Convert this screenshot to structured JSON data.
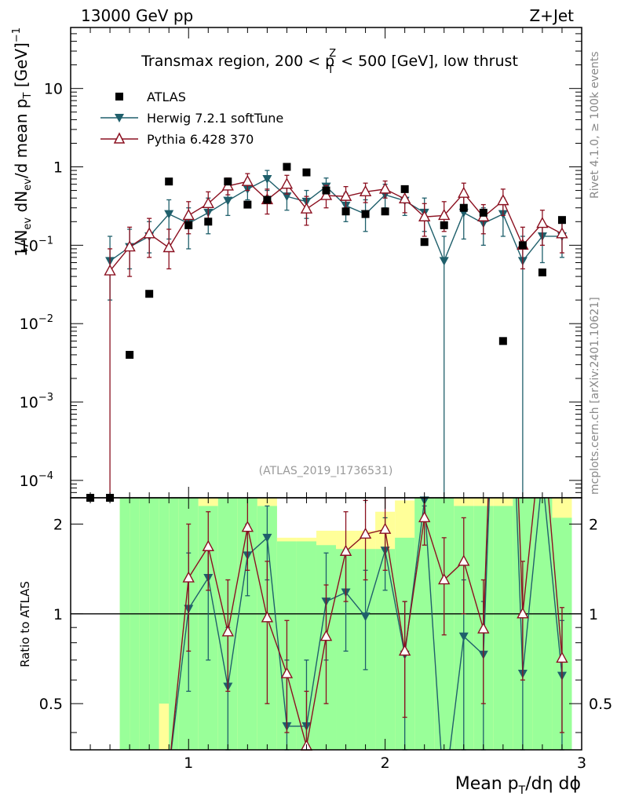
{
  "header": {
    "left_label": "13000 GeV pp",
    "right_label": "Z+Jet",
    "plot_title_main": "Transmax region, 200 < p",
    "plot_title_sup": "Z",
    "plot_title_sub": "T",
    "plot_title_tail": " < 500 [GeV], low thrust",
    "analysis_id": "(ATLAS_2019_I1736531)",
    "side_text_top": "Rivet 4.1.0, ≥ 100k events",
    "side_text_bottom": "mcplots.cern.ch [arXiv:2401.10621]"
  },
  "colors": {
    "atlas": "#000000",
    "herwig": "#1f5f6b",
    "pythia": "#8b1020",
    "band_inner": "#99ff99",
    "band_outer": "#ffff99"
  },
  "chart_data": {
    "type": "scatter",
    "title": "Transmax region, 200 < pT^Z < 500 [GeV], low thrust",
    "xlabel": "Mean pT/dη dϕ",
    "ylabel": "1/Nev dNev/d mean pT [GeV]^-1",
    "ratio_ylabel": "Ratio to ATLAS",
    "xlim": [
      0.4,
      3.0
    ],
    "ylim": [
      6e-05,
      60
    ],
    "ratio_ylim": [
      0.35,
      2.45
    ],
    "yscale": "log",
    "x_ticks": [
      1,
      2,
      3
    ],
    "y_ticks": [
      {
        "value": 10,
        "base": "10",
        "exp": ""
      },
      {
        "value": 1,
        "base": "1",
        "exp": ""
      },
      {
        "value": 0.1,
        "base": "10",
        "exp": "−1"
      },
      {
        "value": 0.01,
        "base": "10",
        "exp": "−2"
      },
      {
        "value": 0.001,
        "base": "10",
        "exp": "−3"
      },
      {
        "value": 0.0001,
        "base": "10",
        "exp": "−4"
      }
    ],
    "ratio_ticks": [
      0.5,
      1,
      2
    ],
    "x_label_parts": {
      "main": "Mean p",
      "sub": "T",
      "tail": "/dη dϕ"
    },
    "y_label_parts": {
      "a": "1/N",
      "a_sub": "ev",
      "b": " dN",
      "b_sub": "ev",
      "c": "/d mean p",
      "c_sub": "T",
      "d": " [GeV]",
      "d_sup": "−1"
    },
    "band_edges": [
      0.65,
      0.7,
      0.75,
      0.8,
      0.85,
      0.9,
      0.95,
      1.05,
      1.15,
      1.25,
      1.35,
      1.45,
      1.55,
      1.65,
      1.75,
      1.85,
      1.95,
      2.05,
      2.15,
      2.25,
      2.35,
      2.45,
      2.55,
      2.65,
      2.75,
      2.85,
      2.95
    ],
    "band_inner_low": [
      0.35,
      0.35,
      0.35,
      0.35,
      0.5,
      0.35,
      0.35,
      0.35,
      0.35,
      0.35,
      0.35,
      0.35,
      0.35,
      0.35,
      0.35,
      0.35,
      0.35,
      0.35,
      0.35,
      0.35,
      0.35,
      0.35,
      0.35,
      0.35,
      0.35,
      0.35
    ],
    "band_inner_high": [
      2.45,
      2.45,
      2.45,
      2.45,
      2.45,
      2.45,
      2.45,
      2.3,
      2.45,
      2.45,
      2.3,
      1.75,
      1.75,
      1.7,
      1.65,
      1.65,
      1.65,
      1.8,
      2.45,
      2.45,
      2.3,
      2.3,
      2.3,
      2.45,
      2.45,
      2.1
    ],
    "band_outer_low": [
      0.35,
      0.35,
      0.35,
      0.35,
      0.35,
      0.35,
      0.35,
      0.35,
      0.35,
      0.35,
      0.35,
      0.35,
      0.35,
      0.35,
      0.35,
      0.35,
      0.35,
      0.35,
      0.35,
      0.35,
      0.35,
      0.35,
      0.35,
      0.35,
      0.35,
      0.35
    ],
    "band_outer_high": [
      2.45,
      2.45,
      2.45,
      2.45,
      2.45,
      2.45,
      2.45,
      2.45,
      2.45,
      2.45,
      2.45,
      1.8,
      1.8,
      1.9,
      1.9,
      1.9,
      2.2,
      2.4,
      2.45,
      2.45,
      2.45,
      2.45,
      2.45,
      2.45,
      2.45,
      2.45
    ],
    "atlas": {
      "name": "ATLAS",
      "x": [
        0.5,
        0.6,
        0.7,
        0.8,
        0.9,
        1.0,
        1.1,
        1.2,
        1.3,
        1.4,
        1.5,
        1.6,
        1.7,
        1.8,
        1.9,
        2.0,
        2.1,
        2.2,
        2.3,
        2.4,
        2.5,
        2.6,
        2.7,
        2.8,
        2.9
      ],
      "y": [
        5e-05,
        5e-05,
        0.004,
        0.024,
        0.65,
        0.18,
        0.2,
        0.65,
        0.33,
        0.38,
        1.0,
        0.85,
        0.5,
        0.27,
        0.25,
        0.27,
        0.52,
        0.11,
        0.18,
        0.3,
        0.26,
        0.006,
        0.1,
        0.045,
        0.21
      ]
    },
    "series": [
      {
        "name": "Herwig 7.2.1 softTune",
        "x": [
          0.6,
          0.7,
          0.8,
          0.9,
          1.0,
          1.1,
          1.2,
          1.3,
          1.4,
          1.5,
          1.6,
          1.7,
          1.8,
          1.9,
          2.0,
          2.1,
          2.2,
          2.3,
          2.4,
          2.5,
          2.6,
          2.7,
          2.8,
          2.9
        ],
        "y": [
          0.063,
          0.095,
          0.13,
          0.25,
          0.19,
          0.26,
          0.37,
          0.52,
          0.7,
          0.42,
          0.36,
          0.56,
          0.32,
          0.25,
          0.44,
          0.37,
          0.26,
          0.063,
          0.26,
          0.19,
          0.25,
          0.063,
          0.13,
          0.13
        ],
        "ylo": [
          0.02,
          0.05,
          0.08,
          0.12,
          0.09,
          0.14,
          0.24,
          0.38,
          0.5,
          0.28,
          0.22,
          0.4,
          0.2,
          0.15,
          0.3,
          0.24,
          0.15,
          5e-05,
          0.12,
          0.1,
          0.13,
          5e-05,
          0.06,
          0.07
        ],
        "yhi": [
          0.13,
          0.16,
          0.2,
          0.38,
          0.3,
          0.4,
          0.55,
          0.7,
          0.9,
          0.6,
          0.5,
          0.72,
          0.46,
          0.38,
          0.6,
          0.52,
          0.4,
          0.13,
          0.42,
          0.3,
          0.4,
          0.13,
          0.2,
          0.2
        ],
        "ratio": [
          -1,
          -1,
          -1,
          0.3,
          1.04,
          1.32,
          0.57,
          1.57,
          1.8,
          0.42,
          0.42,
          1.1,
          1.18,
          0.98,
          1.63,
          0.73,
          2.4,
          -1,
          0.84,
          0.73,
          41.7,
          0.63,
          2.9,
          0.62
        ],
        "rlo": [
          0.3,
          0.3,
          0.3,
          0.3,
          0.55,
          0.7,
          0.3,
          1.15,
          1.3,
          0.3,
          0.3,
          0.7,
          0.75,
          0.65,
          1.2,
          0.35,
          2.3,
          0.3,
          0.3,
          0.35,
          2.45,
          0.3,
          2.45,
          0.35
        ],
        "rhi": [
          0.3,
          0.3,
          0.3,
          0.3,
          1.6,
          1.7,
          0.9,
          2.0,
          2.3,
          0.7,
          0.7,
          1.6,
          1.6,
          1.4,
          2.1,
          1.1,
          2.45,
          0.3,
          1.3,
          1.1,
          2.45,
          1.0,
          2.45,
          0.95
        ]
      },
      {
        "name": "Pythia 6.428 370",
        "x": [
          0.6,
          0.7,
          0.8,
          0.9,
          1.0,
          1.1,
          1.2,
          1.3,
          1.4,
          1.5,
          1.6,
          1.7,
          1.8,
          1.9,
          2.0,
          2.1,
          2.2,
          2.3,
          2.4,
          2.5,
          2.6,
          2.7,
          2.8,
          2.9
        ],
        "y": [
          0.047,
          0.095,
          0.14,
          0.093,
          0.24,
          0.34,
          0.57,
          0.65,
          0.38,
          0.6,
          0.29,
          0.43,
          0.42,
          0.48,
          0.52,
          0.39,
          0.23,
          0.24,
          0.46,
          0.23,
          0.37,
          0.1,
          0.19,
          0.14
        ],
        "ylo": [
          5e-05,
          0.04,
          0.07,
          0.05,
          0.14,
          0.22,
          0.44,
          0.5,
          0.25,
          0.45,
          0.18,
          0.3,
          0.3,
          0.35,
          0.4,
          0.26,
          0.13,
          0.15,
          0.3,
          0.14,
          0.24,
          0.05,
          0.1,
          0.08
        ],
        "yhi": [
          0.09,
          0.17,
          0.22,
          0.16,
          0.36,
          0.48,
          0.72,
          0.82,
          0.52,
          0.78,
          0.42,
          0.58,
          0.56,
          0.62,
          0.66,
          0.54,
          0.34,
          0.36,
          0.62,
          0.33,
          0.52,
          0.17,
          0.28,
          0.22
        ],
        "ratio": [
          -1,
          -1,
          -1,
          0.3,
          1.32,
          1.68,
          0.87,
          1.95,
          0.97,
          0.63,
          0.36,
          0.84,
          1.62,
          1.85,
          1.92,
          0.75,
          2.1,
          1.3,
          1.5,
          0.89,
          60,
          1.0,
          4.3,
          0.71
        ],
        "rlo": [
          0.3,
          0.3,
          0.3,
          0.3,
          0.75,
          1.2,
          0.55,
          1.4,
          0.5,
          0.4,
          0.3,
          0.5,
          1.1,
          1.3,
          1.4,
          0.45,
          1.7,
          0.85,
          1.0,
          0.5,
          2.45,
          0.6,
          2.45,
          0.4
        ],
        "rhi": [
          0.3,
          0.3,
          0.3,
          0.3,
          2.0,
          2.2,
          1.3,
          2.45,
          1.5,
          0.95,
          0.55,
          1.25,
          2.2,
          2.4,
          2.45,
          1.1,
          2.45,
          1.8,
          2.1,
          1.3,
          2.45,
          1.5,
          2.45,
          1.05
        ]
      }
    ]
  }
}
